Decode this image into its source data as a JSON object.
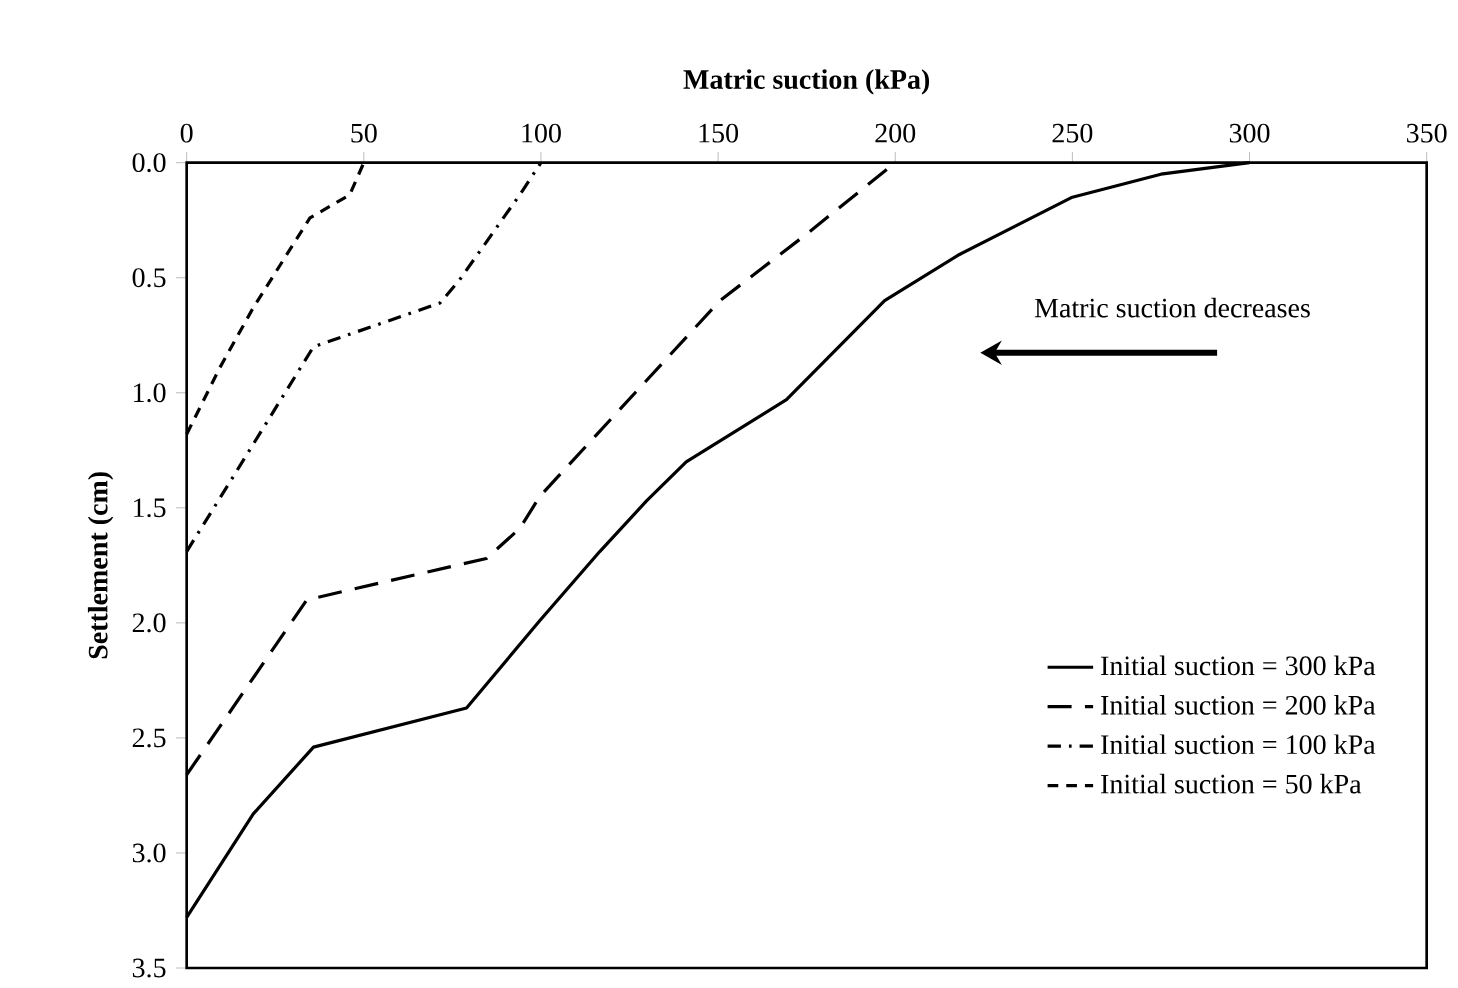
{
  "chart_data": {
    "type": "line",
    "xlabel": "Matric suction (kPa)",
    "ylabel": "Settlement (cm)",
    "xlim": [
      0,
      350
    ],
    "xticks": [
      0,
      50,
      100,
      150,
      200,
      250,
      300,
      350
    ],
    "ylim": [
      3.5,
      0
    ],
    "yticks": [
      {
        "value": 0,
        "label": "0.0"
      },
      {
        "value": 0.5,
        "label": "0.5"
      },
      {
        "value": 1,
        "label": "1.0"
      },
      {
        "value": 1.5,
        "label": "1.5"
      },
      {
        "value": 2,
        "label": "2.0"
      },
      {
        "value": 2.5,
        "label": "2.5"
      },
      {
        "value": 3,
        "label": "3.0"
      },
      {
        "value": 3.5,
        "label": "3.5"
      }
    ],
    "legend": "right",
    "grid": false,
    "marker": "none",
    "annotations": [
      "Matric suction decreases"
    ],
    "series": [
      {
        "name": "Initial suction = 300 kPa",
        "color": "#000000",
        "line_style": "solid",
        "x": [
          0,
          18.8,
          35.8,
          79,
          99.7,
          116.6,
          129.8,
          141,
          169.3,
          197,
          218,
          250,
          275,
          300
        ],
        "values": [
          3.28,
          2.83,
          2.54,
          2.37,
          1.99,
          1.69,
          1.47,
          1.3,
          1.03,
          0.6,
          0.4,
          0.15,
          0.05,
          0
        ]
      },
      {
        "name": "Initial suction = 200 kPa",
        "color": "#000000",
        "line_style": "long dashed",
        "x": [
          0,
          9.4,
          33.9,
          84.6,
          94,
          99.7,
          150.5,
          175,
          200
        ],
        "values": [
          2.66,
          2.45,
          1.9,
          1.72,
          1.59,
          1.45,
          0.6,
          0.31,
          0
        ]
      },
      {
        "name": "Initial suction = 100 kPa",
        "color": "#000000",
        "line_style": "dash dot",
        "x": [
          0,
          11.3,
          35.8,
          71.5,
          77,
          94,
          100
        ],
        "values": [
          1.69,
          1.41,
          0.8,
          0.61,
          0.51,
          0.14,
          0
        ]
      },
      {
        "name": "Initial suction = 50 kPa",
        "color": "#000000",
        "line_style": "dashed",
        "x": [
          0,
          9.4,
          18.8,
          34.8,
          46,
          50
        ],
        "values": [
          1.18,
          0.89,
          0.63,
          0.24,
          0.14,
          0
        ]
      }
    ]
  }
}
